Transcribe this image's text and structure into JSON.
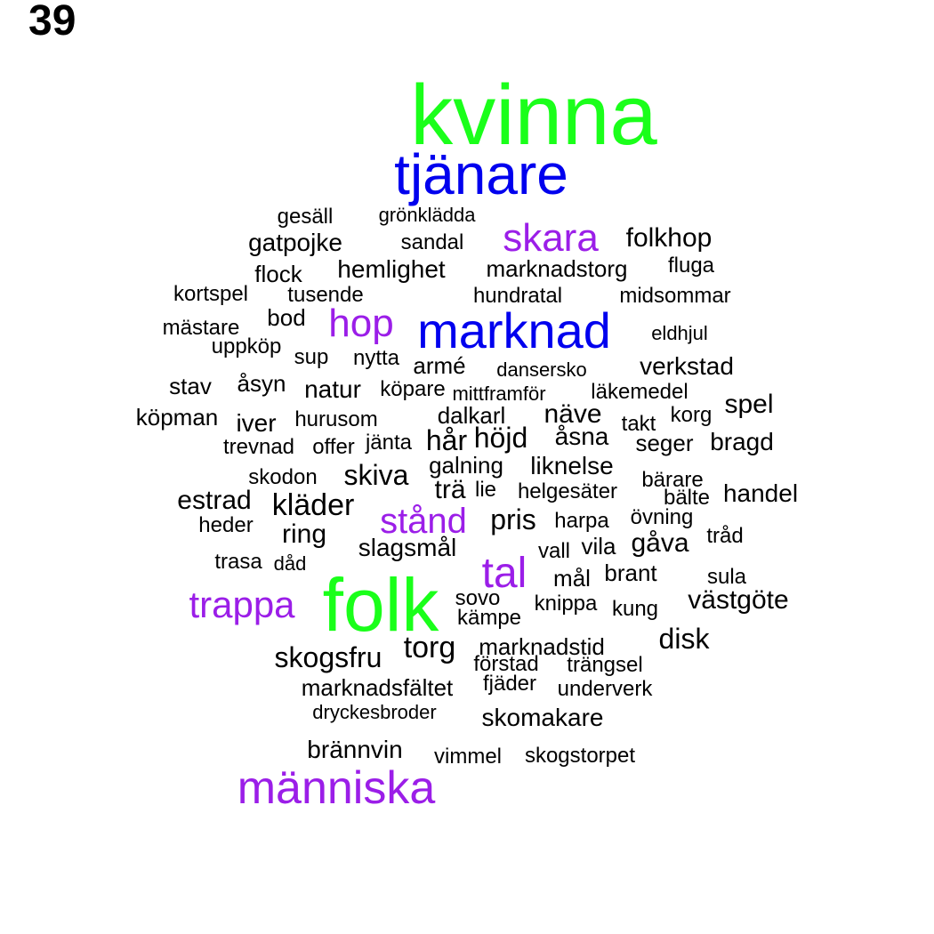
{
  "page_number": "39",
  "colors": {
    "green": "#1aff1a",
    "blue": "#0000ee",
    "purple": "#9b1ee8",
    "black": "#000000"
  },
  "words": [
    {
      "text": "kvinna",
      "color": "green"
    },
    {
      "text": "tjänare",
      "color": "blue"
    },
    {
      "text": "gesäll",
      "color": "black"
    },
    {
      "text": "grönklädda",
      "color": "black"
    },
    {
      "text": "skara",
      "color": "purple"
    },
    {
      "text": "folkhop",
      "color": "black"
    },
    {
      "text": "gatpojke",
      "color": "black"
    },
    {
      "text": "sandal",
      "color": "black"
    },
    {
      "text": "flock",
      "color": "black"
    },
    {
      "text": "hemlighet",
      "color": "black"
    },
    {
      "text": "marknadstorg",
      "color": "black"
    },
    {
      "text": "fluga",
      "color": "black"
    },
    {
      "text": "kortspel",
      "color": "black"
    },
    {
      "text": "tusende",
      "color": "black"
    },
    {
      "text": "hundratal",
      "color": "black"
    },
    {
      "text": "midsommar",
      "color": "black"
    },
    {
      "text": "bod",
      "color": "black"
    },
    {
      "text": "hop",
      "color": "purple"
    },
    {
      "text": "marknad",
      "color": "blue"
    },
    {
      "text": "mästare",
      "color": "black"
    },
    {
      "text": "eldhjul",
      "color": "black"
    },
    {
      "text": "uppköp",
      "color": "black"
    },
    {
      "text": "sup",
      "color": "black"
    },
    {
      "text": "nytta",
      "color": "black"
    },
    {
      "text": "armé",
      "color": "black"
    },
    {
      "text": "dansersko",
      "color": "black"
    },
    {
      "text": "verkstad",
      "color": "black"
    },
    {
      "text": "stav",
      "color": "black"
    },
    {
      "text": "åsyn",
      "color": "black"
    },
    {
      "text": "natur",
      "color": "black"
    },
    {
      "text": "köpare",
      "color": "black"
    },
    {
      "text": "mittframför",
      "color": "black"
    },
    {
      "text": "läkemedel",
      "color": "black"
    },
    {
      "text": "spel",
      "color": "black"
    },
    {
      "text": "köpman",
      "color": "black"
    },
    {
      "text": "iver",
      "color": "black"
    },
    {
      "text": "hurusom",
      "color": "black"
    },
    {
      "text": "dalkarl",
      "color": "black"
    },
    {
      "text": "näve",
      "color": "black"
    },
    {
      "text": "takt",
      "color": "black"
    },
    {
      "text": "korg",
      "color": "black"
    },
    {
      "text": "trevnad",
      "color": "black"
    },
    {
      "text": "offer",
      "color": "black"
    },
    {
      "text": "jänta",
      "color": "black"
    },
    {
      "text": "hår",
      "color": "black"
    },
    {
      "text": "höjd",
      "color": "black"
    },
    {
      "text": "åsna",
      "color": "black"
    },
    {
      "text": "seger",
      "color": "black"
    },
    {
      "text": "bragd",
      "color": "black"
    },
    {
      "text": "skodon",
      "color": "black"
    },
    {
      "text": "skiva",
      "color": "black"
    },
    {
      "text": "galning",
      "color": "black"
    },
    {
      "text": "liknelse",
      "color": "black"
    },
    {
      "text": "bärare",
      "color": "black"
    },
    {
      "text": "estrad",
      "color": "black"
    },
    {
      "text": "kläder",
      "color": "black"
    },
    {
      "text": "trä",
      "color": "black"
    },
    {
      "text": "lie",
      "color": "black"
    },
    {
      "text": "helgesäter",
      "color": "black"
    },
    {
      "text": "bälte",
      "color": "black"
    },
    {
      "text": "handel",
      "color": "black"
    },
    {
      "text": "heder",
      "color": "black"
    },
    {
      "text": "stånd",
      "color": "purple"
    },
    {
      "text": "pris",
      "color": "black"
    },
    {
      "text": "harpa",
      "color": "black"
    },
    {
      "text": "övning",
      "color": "black"
    },
    {
      "text": "ring",
      "color": "black"
    },
    {
      "text": "slagsmål",
      "color": "black"
    },
    {
      "text": "vall",
      "color": "black"
    },
    {
      "text": "vila",
      "color": "black"
    },
    {
      "text": "gåva",
      "color": "black"
    },
    {
      "text": "tråd",
      "color": "black"
    },
    {
      "text": "trasa",
      "color": "black"
    },
    {
      "text": "dåd",
      "color": "black"
    },
    {
      "text": "tal",
      "color": "purple"
    },
    {
      "text": "mål",
      "color": "black"
    },
    {
      "text": "brant",
      "color": "black"
    },
    {
      "text": "sula",
      "color": "black"
    },
    {
      "text": "trappa",
      "color": "purple"
    },
    {
      "text": "folk",
      "color": "green"
    },
    {
      "text": "sovo",
      "color": "black"
    },
    {
      "text": "knippa",
      "color": "black"
    },
    {
      "text": "kung",
      "color": "black"
    },
    {
      "text": "västgöte",
      "color": "black"
    },
    {
      "text": "kämpe",
      "color": "black"
    },
    {
      "text": "disk",
      "color": "black"
    },
    {
      "text": "torg",
      "color": "black"
    },
    {
      "text": "marknadstid",
      "color": "black"
    },
    {
      "text": "skogsfru",
      "color": "black"
    },
    {
      "text": "förstad",
      "color": "black"
    },
    {
      "text": "trängsel",
      "color": "black"
    },
    {
      "text": "marknadsfältet",
      "color": "black"
    },
    {
      "text": "fjäder",
      "color": "black"
    },
    {
      "text": "underverk",
      "color": "black"
    },
    {
      "text": "dryckesbroder",
      "color": "black"
    },
    {
      "text": "skomakare",
      "color": "black"
    },
    {
      "text": "brännvin",
      "color": "black"
    },
    {
      "text": "vimmel",
      "color": "black"
    },
    {
      "text": "skogstorpet",
      "color": "black"
    },
    {
      "text": "människa",
      "color": "purple"
    }
  ]
}
